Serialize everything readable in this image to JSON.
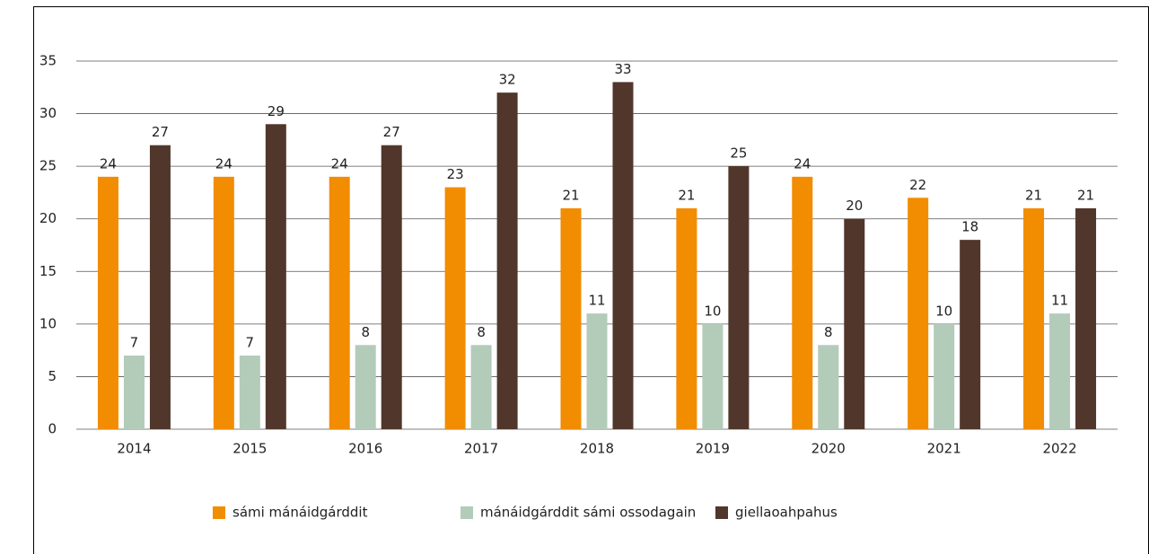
{
  "chart_data": {
    "type": "bar",
    "categories": [
      "2014",
      "2015",
      "2016",
      "2017",
      "2018",
      "2019",
      "2020",
      "2021",
      "2022"
    ],
    "series": [
      {
        "name": "sámi mánáidgárddit",
        "color": "#f28c00",
        "values": [
          24,
          24,
          24,
          23,
          21,
          21,
          24,
          22,
          21
        ]
      },
      {
        "name": "mánáidgárddit sámi ossodagain",
        "color": "#b3cbb9",
        "values": [
          7,
          7,
          8,
          8,
          11,
          10,
          8,
          10,
          11
        ]
      },
      {
        "name": "giellaoahpahus",
        "color": "#51362b",
        "values": [
          27,
          29,
          27,
          32,
          33,
          25,
          20,
          18,
          21
        ]
      }
    ],
    "ylim": [
      0,
      35
    ],
    "yticks": [
      0,
      5,
      10,
      15,
      20,
      25,
      30,
      35
    ],
    "grid": true,
    "legend": "bottom"
  }
}
